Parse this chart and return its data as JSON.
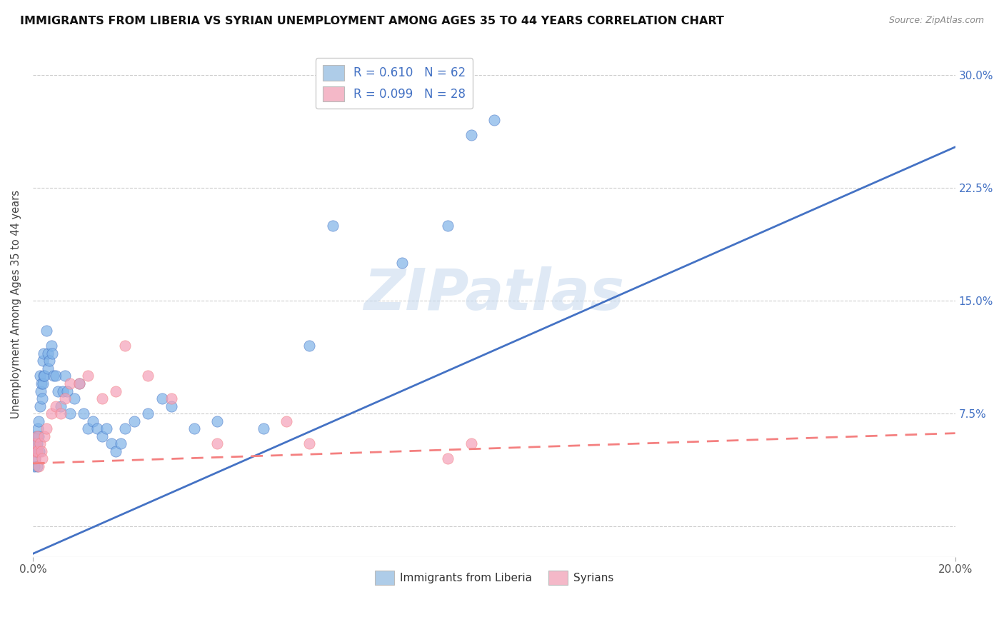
{
  "title": "IMMIGRANTS FROM LIBERIA VS SYRIAN UNEMPLOYMENT AMONG AGES 35 TO 44 YEARS CORRELATION CHART",
  "source": "Source: ZipAtlas.com",
  "ylabel": "Unemployment Among Ages 35 to 44 years",
  "xmin": 0.0,
  "xmax": 0.2,
  "ymin": -0.02,
  "ymax": 0.315,
  "yticks": [
    0.0,
    0.075,
    0.15,
    0.225,
    0.3
  ],
  "ytick_labels": [
    "",
    "7.5%",
    "15.0%",
    "22.5%",
    "30.0%"
  ],
  "legend_items": [
    {
      "label": "R = 0.610   N = 62",
      "facecolor": "#aecce8"
    },
    {
      "label": "R = 0.099   N = 28",
      "facecolor": "#f4b8c8"
    }
  ],
  "blue_line_color": "#4472c4",
  "pink_line_color": "#f48080",
  "blue_dot_color": "#7fb3e8",
  "pink_dot_color": "#f4a0b8",
  "regression_blue_slope": 1.35,
  "regression_blue_intercept": -0.018,
  "regression_pink_slope": 0.1,
  "regression_pink_intercept": 0.042,
  "watermark": "ZIPatlas",
  "blue_scatter_x": [
    0.0002,
    0.0003,
    0.0004,
    0.0005,
    0.0006,
    0.0007,
    0.0008,
    0.0009,
    0.001,
    0.0011,
    0.0012,
    0.0013,
    0.0014,
    0.0015,
    0.0016,
    0.0017,
    0.0018,
    0.002,
    0.0021,
    0.0022,
    0.0023,
    0.0024,
    0.0025,
    0.003,
    0.0032,
    0.0033,
    0.0035,
    0.004,
    0.0042,
    0.0045,
    0.005,
    0.0055,
    0.006,
    0.0065,
    0.007,
    0.0075,
    0.008,
    0.009,
    0.01,
    0.011,
    0.012,
    0.013,
    0.014,
    0.015,
    0.016,
    0.017,
    0.018,
    0.019,
    0.02,
    0.022,
    0.025,
    0.028,
    0.03,
    0.035,
    0.04,
    0.05,
    0.06,
    0.065,
    0.08,
    0.09,
    0.095,
    0.1
  ],
  "blue_scatter_y": [
    0.055,
    0.04,
    0.055,
    0.045,
    0.05,
    0.06,
    0.05,
    0.04,
    0.055,
    0.065,
    0.06,
    0.07,
    0.05,
    0.08,
    0.1,
    0.09,
    0.095,
    0.085,
    0.095,
    0.11,
    0.1,
    0.115,
    0.1,
    0.13,
    0.115,
    0.105,
    0.11,
    0.12,
    0.115,
    0.1,
    0.1,
    0.09,
    0.08,
    0.09,
    0.1,
    0.09,
    0.075,
    0.085,
    0.095,
    0.075,
    0.065,
    0.07,
    0.065,
    0.06,
    0.065,
    0.055,
    0.05,
    0.055,
    0.065,
    0.07,
    0.075,
    0.085,
    0.08,
    0.065,
    0.07,
    0.065,
    0.12,
    0.2,
    0.175,
    0.2,
    0.26,
    0.27
  ],
  "pink_scatter_x": [
    0.0003,
    0.0005,
    0.0007,
    0.0009,
    0.001,
    0.0012,
    0.0015,
    0.0018,
    0.002,
    0.0025,
    0.003,
    0.004,
    0.005,
    0.006,
    0.007,
    0.008,
    0.01,
    0.012,
    0.015,
    0.018,
    0.02,
    0.025,
    0.03,
    0.04,
    0.055,
    0.06,
    0.09,
    0.095
  ],
  "pink_scatter_y": [
    0.05,
    0.045,
    0.055,
    0.06,
    0.05,
    0.04,
    0.055,
    0.05,
    0.045,
    0.06,
    0.065,
    0.075,
    0.08,
    0.075,
    0.085,
    0.095,
    0.095,
    0.1,
    0.085,
    0.09,
    0.12,
    0.1,
    0.085,
    0.055,
    0.07,
    0.055,
    0.045,
    0.055
  ]
}
